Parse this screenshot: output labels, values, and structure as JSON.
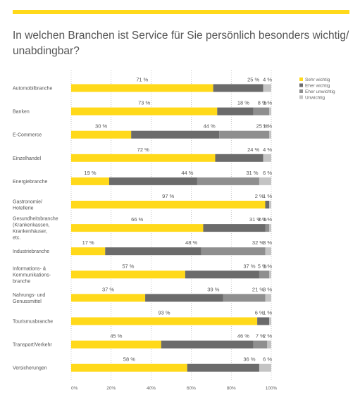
{
  "title": "In welchen Branchen ist Service für Sie persönlich besonders wichtig/ unabdingbar?",
  "colors": {
    "accent": "#ffd91a",
    "series": [
      "#ffd91a",
      "#6b6b6b",
      "#8f8f8f",
      "#c4c4c4"
    ]
  },
  "chart_data": {
    "type": "bar",
    "orientation": "horizontal",
    "stacked": true,
    "xlim": [
      0,
      100
    ],
    "x_ticks": [
      "0%",
      "20%",
      "40%",
      "60%",
      "80%",
      "100%"
    ],
    "grid": true,
    "legend_position": "top-right",
    "categories": [
      "Automobilbranche",
      "Banken",
      "E-Commerce",
      "Einzelhandel",
      "Energiebranche",
      "Gastronomie/ Hotellerie",
      "Gesundheitsbranche (Krankenkassen, Krankenhäuser, etc.",
      "Industriebranche",
      "Informations- & Kommunikations- branche",
      "Nahrungs- und Genussmittel",
      "Tourismusbranche",
      "Transport/Verkehr",
      "Versicherungen"
    ],
    "series": [
      {
        "name": "Sehr wichtig",
        "values": [
          71,
          73,
          30,
          72,
          19,
          97,
          66,
          17,
          57,
          37,
          93,
          45,
          58
        ],
        "labels": [
          "71 %",
          "73 %",
          "30 %",
          "72 %",
          "19 %",
          "97 %",
          "66 %",
          "17 %",
          "57 %",
          "37 %",
          "93 %",
          "45 %",
          "58 %"
        ]
      },
      {
        "name": "Eher wichtig",
        "values": [
          25,
          18,
          44,
          24,
          44,
          2,
          31,
          48,
          37,
          39,
          6,
          46,
          36
        ],
        "labels": [
          "25 %",
          "18 %",
          "44 %",
          "24 %",
          "44 %",
          "2 %",
          "31 %",
          "48 %",
          "37 %",
          "39 %",
          "6 %",
          "46 %",
          "36 %"
        ]
      },
      {
        "name": "Eher unwichtig",
        "values": [
          0,
          8,
          25,
          0,
          31,
          0,
          2,
          32,
          5,
          21,
          0,
          7,
          0
        ],
        "labels": [
          "",
          "8 %",
          "25 %",
          "",
          "31 %",
          "",
          "2 %",
          "32 %",
          "5 %",
          "21 %",
          "",
          "7 %",
          ""
        ]
      },
      {
        "name": "Unwichtig",
        "values": [
          4,
          1,
          1,
          4,
          6,
          1,
          1,
          3,
          1,
          3,
          1,
          2,
          6
        ],
        "labels": [
          "4 %",
          "1 %",
          "1 %",
          "4 %",
          "6 %",
          "1 %",
          "1 %",
          "3 %",
          "1 %",
          "3 %",
          "1 %",
          "2 %",
          "6 %"
        ]
      }
    ]
  }
}
